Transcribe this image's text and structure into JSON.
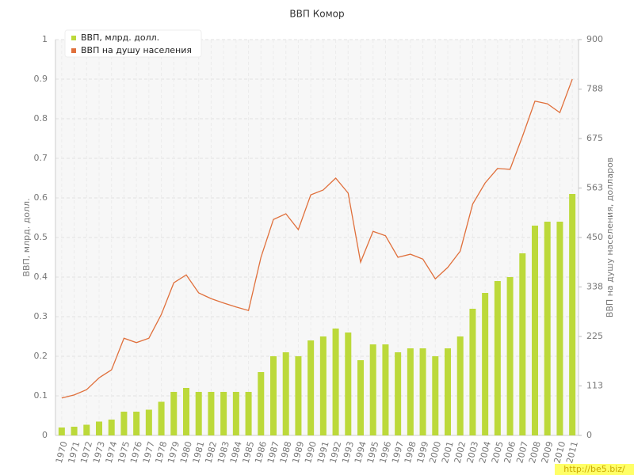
{
  "chart_data": {
    "type": "combo",
    "title": "ВВП Комор",
    "categories": [
      "1970",
      "1971",
      "1972",
      "1973",
      "1974",
      "1975",
      "1976",
      "1977",
      "1978",
      "1979",
      "1980",
      "1981",
      "1982",
      "1983",
      "1984",
      "1985",
      "1986",
      "1987",
      "1988",
      "1989",
      "1990",
      "1991",
      "1992",
      "1993",
      "1994",
      "1995",
      "1996",
      "1997",
      "1998",
      "1999",
      "2000",
      "2001",
      "2002",
      "2003",
      "2004",
      "2005",
      "2006",
      "2007",
      "2008",
      "2009",
      "2010",
      "2011"
    ],
    "series": [
      {
        "name": "ВВП, млрд. долл.",
        "color": "#bcd93a",
        "type": "bar",
        "values": [
          0.02,
          0.022,
          0.027,
          0.035,
          0.04,
          0.06,
          0.06,
          0.065,
          0.085,
          0.11,
          0.12,
          0.11,
          0.11,
          0.11,
          0.11,
          0.11,
          0.16,
          0.2,
          0.21,
          0.2,
          0.24,
          0.25,
          0.27,
          0.26,
          0.19,
          0.23,
          0.23,
          0.21,
          0.22,
          0.22,
          0.2,
          0.22,
          0.25,
          0.32,
          0.36,
          0.39,
          0.4,
          0.46,
          0.53,
          0.54,
          0.54,
          0.61
        ]
      },
      {
        "name": "ВВП на душу населения",
        "color": "#e0703c",
        "type": "line",
        "axis": "y2",
        "values": [
          85,
          92,
          104,
          131,
          149,
          221,
          211,
          221,
          275,
          347,
          365,
          324,
          311,
          301,
          292,
          284,
          405,
          491,
          504,
          468,
          547,
          558,
          585,
          551,
          394,
          464,
          454,
          405,
          412,
          401,
          356,
          382,
          419,
          526,
          574,
          607,
          605,
          680,
          760,
          754,
          734,
          810
        ]
      }
    ],
    "ylabel": "ВВП, млрд. долл.",
    "y2label": "ВВП на душу населения, долларов",
    "ylim": [
      0,
      1
    ],
    "yticks": [
      0,
      0.1,
      0.2,
      0.3,
      0.4,
      0.5,
      0.6,
      0.7,
      0.8,
      0.9,
      1
    ],
    "y2lim": [
      0,
      900
    ],
    "y2ticks": [
      0,
      {
        "value": 112.5,
        "label": "113"
      },
      225,
      {
        "value": 337.5,
        "label": "338"
      },
      450,
      {
        "value": 562.5,
        "label": "563"
      },
      675,
      {
        "value": 787.5,
        "label": "788"
      },
      900
    ],
    "grid": true,
    "legend": "upper left"
  },
  "watermark": "http://be5.biz/"
}
